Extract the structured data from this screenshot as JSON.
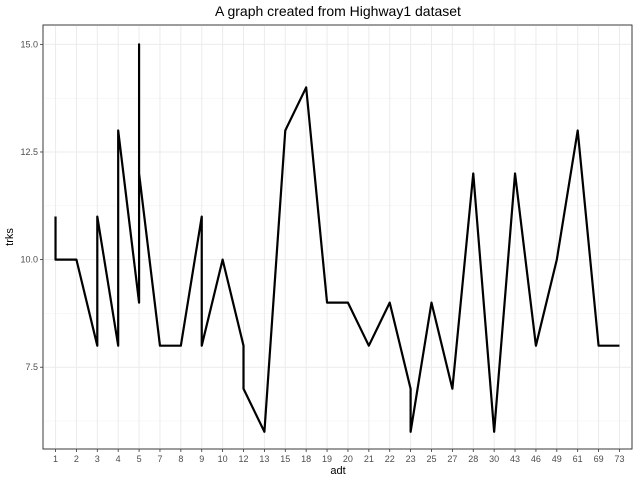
{
  "chart_data": {
    "type": "line",
    "title": "A graph created from Highway1 dataset",
    "xlabel": "adt",
    "ylabel": "trks",
    "x_scale": "discrete",
    "categories": [
      "1",
      "2",
      "3",
      "4",
      "5",
      "7",
      "8",
      "9",
      "10",
      "12",
      "13",
      "15",
      "18",
      "19",
      "20",
      "21",
      "22",
      "23",
      "25",
      "27",
      "28",
      "30",
      "43",
      "46",
      "49",
      "61",
      "69",
      "73"
    ],
    "y_ticks": [
      7.5,
      10.0,
      12.5,
      15.0
    ],
    "y_tick_labels": [
      "7.5",
      "10.0",
      "12.5",
      "15.0"
    ],
    "ylim": [
      5.6,
      15.45
    ],
    "grid": true,
    "series": [
      {
        "x": [
          "1",
          "1",
          "2",
          "3",
          "3",
          "4",
          "4",
          "5",
          "5",
          "5",
          "7",
          "8",
          "9",
          "9",
          "10",
          "12",
          "12",
          "13",
          "15",
          "18",
          "19",
          "20",
          "21",
          "22",
          "23",
          "23",
          "25",
          "27",
          "28",
          "30",
          "43",
          "46",
          "49",
          "61",
          "69",
          "73"
        ],
        "values": [
          11,
          10,
          10,
          8,
          11,
          8,
          13,
          9,
          15,
          12,
          8,
          8,
          11,
          8,
          10,
          8,
          7,
          6,
          13,
          14,
          9,
          9,
          8,
          9,
          7,
          6,
          9,
          7,
          12,
          6,
          12,
          8,
          10,
          13,
          8,
          8
        ],
        "color": "#000000"
      }
    ]
  }
}
